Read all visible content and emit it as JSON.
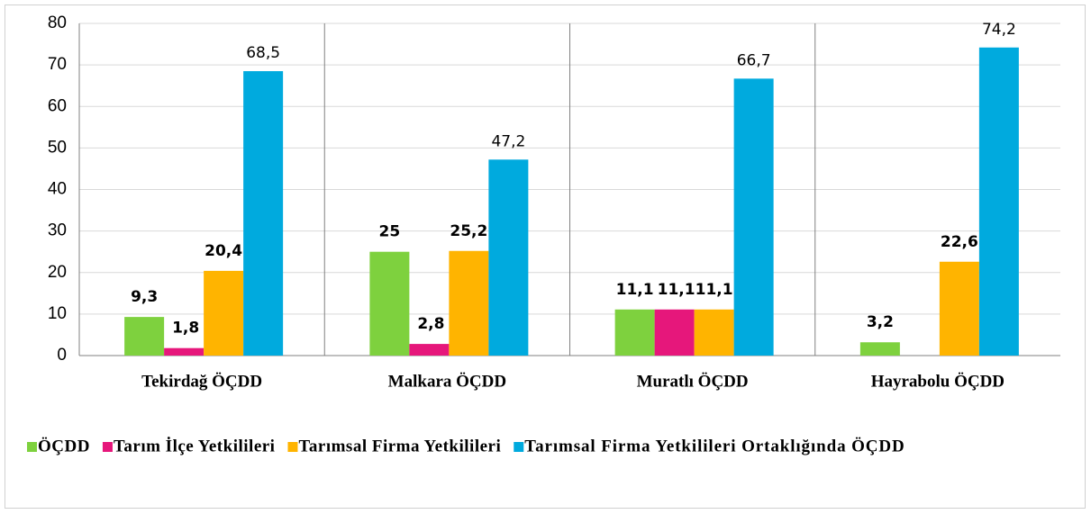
{
  "chart_data": {
    "type": "bar",
    "categories": [
      "Tekirdağ ÖÇDD",
      "Malkara ÖÇDD",
      "Muratlı ÖÇDD",
      "Hayrabolu ÖÇDD"
    ],
    "series": [
      {
        "name": "ÖÇDD",
        "color": "#7ed13e",
        "values": [
          9.3,
          25,
          11.1,
          3.2
        ],
        "value_labels": [
          "9,3",
          "25",
          "11,1",
          "3,2"
        ]
      },
      {
        "name": "Tarım İlçe Yetkilileri",
        "color": "#e6177b",
        "values": [
          1.8,
          2.8,
          11.1,
          null
        ],
        "value_labels": [
          "1,8",
          "2,8",
          "11,1",
          null
        ]
      },
      {
        "name": "Tarımsal Firma Yetkilileri",
        "color": "#ffb400",
        "values": [
          20.4,
          25.2,
          11.1,
          22.6
        ],
        "value_labels": [
          "20,4",
          "25,2",
          "11,1",
          "22,6"
        ]
      },
      {
        "name": "Tarımsal Firma Yetkilileri Ortaklığında ÖÇDD",
        "color": "#00aade",
        "values": [
          68.5,
          47.2,
          66.7,
          74.2
        ],
        "value_labels": [
          "68,5",
          "47,2",
          "66,7",
          "74,2"
        ]
      }
    ],
    "ylim": [
      0,
      80
    ],
    "yticks": [
      0,
      10,
      20,
      30,
      40,
      50,
      60,
      70,
      80
    ],
    "grid": true,
    "legend": "bottom"
  }
}
